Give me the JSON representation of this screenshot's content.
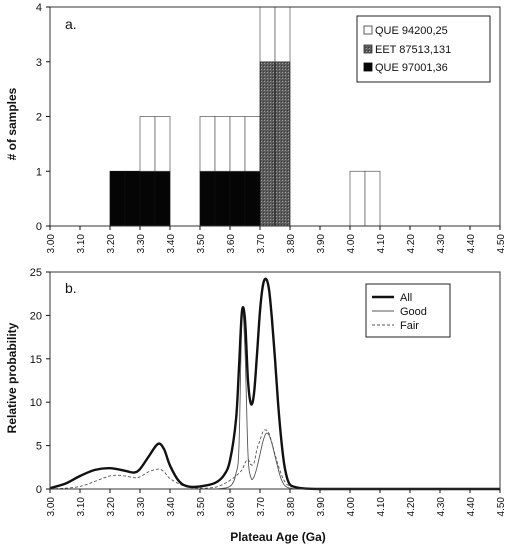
{
  "figure": {
    "colors": {
      "axis": "#111111",
      "frame": "#333333",
      "que97001": "#050505",
      "eet87513": "#6a6a6a",
      "que94200": "#ffffff"
    }
  },
  "chart_data": [
    {
      "type": "bar",
      "panel_label": "a.",
      "xlabel": "",
      "ylabel": "# of samples",
      "xlim": [
        3.0,
        4.5
      ],
      "ylim": [
        0,
        4
      ],
      "x_ticks": [
        "3.00",
        "3.10",
        "3.20",
        "3.30",
        "3.40",
        "3.50",
        "3.60",
        "3.70",
        "3.80",
        "3.90",
        "4.00",
        "4.10",
        "4.20",
        "4.30",
        "4.40",
        "4.50"
      ],
      "y_ticks": [
        "0",
        "1",
        "2",
        "3",
        "4"
      ],
      "bin_width": 0.05,
      "bins": [
        "3.20-3.25",
        "3.25-3.30",
        "3.30-3.35",
        "3.35-3.40",
        "3.50-3.55",
        "3.55-3.60",
        "3.60-3.65",
        "3.65-3.70",
        "3.70-3.75",
        "3.75-3.80",
        "4.00-4.05",
        "4.05-4.10"
      ],
      "stacked": true,
      "legend": "top-right",
      "series": [
        {
          "name": "QUE 97001,36",
          "color": "#050505",
          "bin_starts": [
            3.2,
            3.25,
            3.3,
            3.35,
            3.5,
            3.55,
            3.6,
            3.65,
            3.7,
            3.75,
            4.0,
            4.05
          ],
          "values": [
            1,
            1,
            1,
            1,
            1,
            1,
            1,
            1,
            0,
            0,
            0,
            0
          ]
        },
        {
          "name": "EET 87513,131",
          "color": "#6a6a6a",
          "bin_starts": [
            3.2,
            3.25,
            3.3,
            3.35,
            3.5,
            3.55,
            3.6,
            3.65,
            3.7,
            3.75,
            4.0,
            4.05
          ],
          "values": [
            0,
            0,
            0,
            0,
            0,
            0,
            0,
            0,
            3,
            3,
            0,
            0
          ]
        },
        {
          "name": "QUE 94200,25",
          "color": "#ffffff",
          "bin_starts": [
            3.2,
            3.25,
            3.3,
            3.35,
            3.5,
            3.55,
            3.6,
            3.65,
            3.7,
            3.75,
            4.0,
            4.05
          ],
          "values": [
            0,
            0,
            1,
            1,
            1,
            1,
            1,
            1,
            1,
            1,
            1,
            1
          ]
        }
      ]
    },
    {
      "type": "line",
      "panel_label": "b.",
      "xlabel": "Plateau Age (Ga)",
      "ylabel": "Relative probability",
      "xlim": [
        3.0,
        4.5
      ],
      "ylim": [
        0,
        25
      ],
      "x_ticks": [
        "3.00",
        "3.10",
        "3.20",
        "3.30",
        "3.40",
        "3.50",
        "3.60",
        "3.70",
        "3.80",
        "3.90",
        "4.00",
        "4.10",
        "4.20",
        "4.30",
        "4.40",
        "4.50"
      ],
      "y_ticks": [
        "0",
        "5",
        "10",
        "15",
        "20",
        "25"
      ],
      "legend": "top-right",
      "series": [
        {
          "name": "All",
          "style": "thick-solid",
          "x": [
            3.0,
            3.05,
            3.1,
            3.15,
            3.2,
            3.25,
            3.28,
            3.3,
            3.33,
            3.36,
            3.38,
            3.4,
            3.43,
            3.46,
            3.5,
            3.55,
            3.58,
            3.6,
            3.62,
            3.63,
            3.64,
            3.65,
            3.66,
            3.67,
            3.68,
            3.69,
            3.7,
            3.71,
            3.72,
            3.73,
            3.74,
            3.75,
            3.76,
            3.77,
            3.78,
            3.79,
            3.8,
            3.82,
            3.85,
            3.9,
            4.0,
            4.5
          ],
          "y": [
            0.1,
            0.6,
            1.5,
            2.2,
            2.4,
            2.1,
            1.9,
            2.3,
            3.8,
            5.2,
            4.6,
            2.7,
            0.9,
            0.3,
            0.3,
            0.7,
            1.6,
            3.3,
            8.0,
            14.0,
            20.5,
            19.5,
            12.5,
            9.8,
            11.0,
            15.5,
            20.5,
            23.5,
            24.2,
            23.0,
            19.5,
            15.0,
            10.0,
            6.0,
            3.0,
            1.3,
            0.5,
            0.2,
            0.05,
            0.0,
            0.0,
            0.0
          ]
        },
        {
          "name": "Good",
          "style": "thin-solid",
          "x": [
            3.55,
            3.6,
            3.62,
            3.63,
            3.64,
            3.65,
            3.66,
            3.67,
            3.68,
            3.69,
            3.7,
            3.71,
            3.72,
            3.73,
            3.74,
            3.75,
            3.76,
            3.77,
            3.78,
            3.79,
            3.8,
            3.82,
            3.85
          ],
          "y": [
            0.0,
            0.3,
            1.8,
            5.0,
            20.0,
            16.0,
            4.0,
            1.3,
            1.4,
            2.5,
            4.0,
            5.5,
            6.4,
            6.2,
            5.2,
            3.8,
            2.4,
            1.2,
            0.5,
            0.2,
            0.1,
            0.0,
            0.0
          ]
        },
        {
          "name": "Fair",
          "style": "dashed",
          "x": [
            3.0,
            3.1,
            3.2,
            3.25,
            3.28,
            3.3,
            3.33,
            3.36,
            3.38,
            3.4,
            3.45,
            3.5,
            3.55,
            3.58,
            3.6,
            3.62,
            3.64,
            3.65,
            3.66,
            3.67,
            3.68,
            3.69,
            3.7,
            3.71,
            3.72,
            3.73,
            3.74,
            3.75,
            3.76,
            3.77,
            3.78,
            3.8,
            3.85,
            3.9
          ],
          "y": [
            0.0,
            0.3,
            1.5,
            1.5,
            1.3,
            1.4,
            2.0,
            2.3,
            2.0,
            1.2,
            0.3,
            0.1,
            0.2,
            0.6,
            1.0,
            1.5,
            2.2,
            3.0,
            3.4,
            2.8,
            3.0,
            4.6,
            5.6,
            6.6,
            6.8,
            6.4,
            5.3,
            4.0,
            2.8,
            1.8,
            1.0,
            0.3,
            0.05,
            0.0
          ]
        }
      ]
    }
  ]
}
